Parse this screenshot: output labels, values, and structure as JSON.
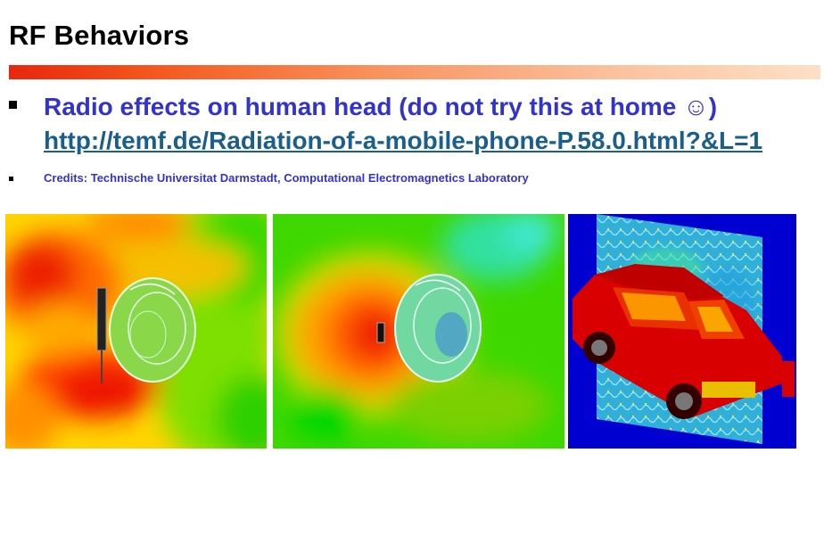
{
  "slide": {
    "title": "RF Behaviors",
    "bullets": [
      {
        "text": "Radio effects on human head (do not try this at home ☺)",
        "link": "http://temf.de/Radiation-of-a-mobile-phone-P.58.0.html?&L=1"
      }
    ],
    "credits": "Credits: Technische Universitat Darmstadt, Computational Electromagnetics Laboratory"
  },
  "colors": {
    "title": "#000000",
    "bullet_text": "#3333cc",
    "link": "#1a5f8a",
    "bar_start": "#e8260e",
    "bar_end": "#fde0c6"
  },
  "images": [
    {
      "name": "head-radiation-field-1"
    },
    {
      "name": "head-radiation-field-2"
    },
    {
      "name": "car-radiation-field"
    }
  ]
}
